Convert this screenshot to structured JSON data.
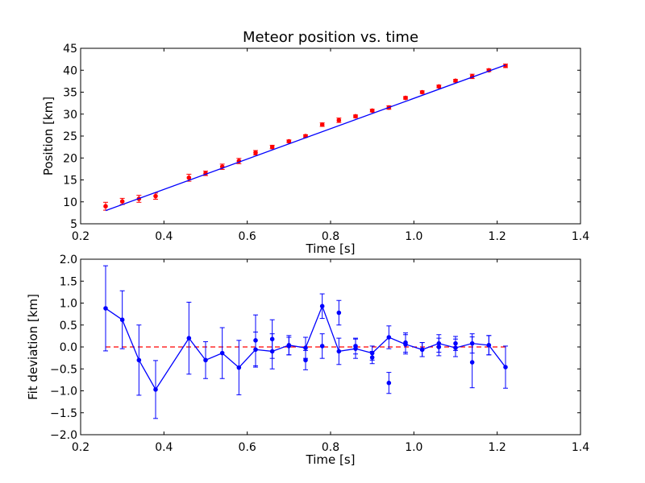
{
  "chart_data": [
    {
      "type": "scatter",
      "title": "Meteor position vs. time",
      "xlabel": "Time [s]",
      "ylabel": "Position [km]",
      "xlim": [
        0.2,
        1.4
      ],
      "ylim": [
        5,
        45
      ],
      "xticks": [
        "0.2",
        "0.4",
        "0.6",
        "0.8",
        "1.0",
        "1.2",
        "1.4"
      ],
      "yticks": [
        "5",
        "10",
        "15",
        "20",
        "25",
        "30",
        "35",
        "40",
        "45"
      ],
      "grid": false,
      "colors": {
        "points": "#ff0000",
        "fit": "#0000ff"
      },
      "series": [
        {
          "kind": "errorbar-points",
          "x": [
            0.26,
            0.3,
            0.34,
            0.38,
            0.46,
            0.5,
            0.54,
            0.58,
            0.62,
            0.66,
            0.7,
            0.74,
            0.78,
            0.82,
            0.86,
            0.9,
            0.94,
            0.98,
            1.02,
            1.06,
            1.1,
            1.14,
            1.18,
            1.22
          ],
          "y": [
            9.0,
            10.1,
            10.7,
            11.3,
            15.5,
            16.5,
            18.0,
            19.3,
            21.2,
            22.5,
            23.8,
            25.0,
            27.6,
            28.6,
            29.5,
            30.8,
            31.5,
            33.7,
            35.0,
            36.3,
            37.6,
            38.6,
            40.0,
            41.0
          ],
          "yerr": [
            0.9,
            0.7,
            0.8,
            0.7,
            0.8,
            0.5,
            0.6,
            0.6,
            0.5,
            0.4,
            0.3,
            0.3,
            0.4,
            0.5,
            0.3,
            0.3,
            0.4,
            0.3,
            0.3,
            0.3,
            0.3,
            0.5,
            0.3,
            0.4
          ]
        },
        {
          "kind": "fit-line",
          "x": [
            0.26,
            1.22
          ],
          "y": [
            8.0,
            41.2
          ]
        }
      ]
    },
    {
      "type": "line",
      "title": "",
      "xlabel": "Time [s]",
      "ylabel": "Fit deviation [km]",
      "xlim": [
        0.2,
        1.4
      ],
      "ylim": [
        -2.0,
        2.0
      ],
      "xticks": [
        "0.2",
        "0.4",
        "0.6",
        "0.8",
        "1.0",
        "1.2",
        "1.4"
      ],
      "yticks": [
        "-2.0",
        "-1.5",
        "-1.0",
        "-0.5",
        "0.0",
        "0.5",
        "1.0",
        "1.5",
        "2.0"
      ],
      "grid": false,
      "colors": {
        "deviation": "#0000ff",
        "zero": "#ff0000"
      },
      "series": [
        {
          "kind": "errorbar-line",
          "x": [
            0.26,
            0.3,
            0.34,
            0.38,
            0.46,
            0.5,
            0.54,
            0.58,
            0.62,
            0.66,
            0.7,
            0.74,
            0.78,
            0.82,
            0.86,
            0.9,
            0.94,
            0.98,
            1.02,
            1.06,
            1.1,
            1.14,
            1.18,
            1.22
          ],
          "y": [
            0.88,
            0.62,
            -0.3,
            -0.97,
            0.2,
            -0.3,
            -0.14,
            -0.47,
            -0.06,
            -0.1,
            0.04,
            -0.02,
            0.93,
            -0.1,
            -0.04,
            -0.14,
            0.22,
            0.06,
            -0.06,
            0.08,
            -0.02,
            0.08,
            0.04,
            -0.46
          ],
          "yerr": [
            0.97,
            0.66,
            0.8,
            0.66,
            0.82,
            0.42,
            0.58,
            0.62,
            0.4,
            0.4,
            0.22,
            0.24,
            0.28,
            0.3,
            0.22,
            0.16,
            0.26,
            0.22,
            0.16,
            0.2,
            0.2,
            0.22,
            0.22,
            0.48
          ]
        },
        {
          "kind": "zero-line",
          "x": [
            0.26,
            1.22
          ],
          "y": [
            0.0,
            0.0
          ]
        }
      ],
      "overlay": {
        "kind": "errorbar-line",
        "x": [
          0.62,
          0.66,
          0.7,
          0.74,
          0.78,
          0.82,
          0.86,
          0.9,
          0.94,
          0.98,
          1.02,
          1.06,
          1.1,
          1.14,
          1.18
        ],
        "y": [
          0.15,
          0.18,
          0.02,
          -0.3,
          0.02,
          0.78,
          0.02,
          -0.24,
          -0.82,
          0.1,
          -0.06,
          0.0,
          0.08,
          -0.35,
          0.04
        ],
        "yerr": [
          0.58,
          0.44,
          0.2,
          0.22,
          0.28,
          0.28,
          0.18,
          0.14,
          0.24,
          0.22,
          0.16,
          0.2,
          0.16,
          0.58,
          0.22
        ]
      }
    }
  ]
}
